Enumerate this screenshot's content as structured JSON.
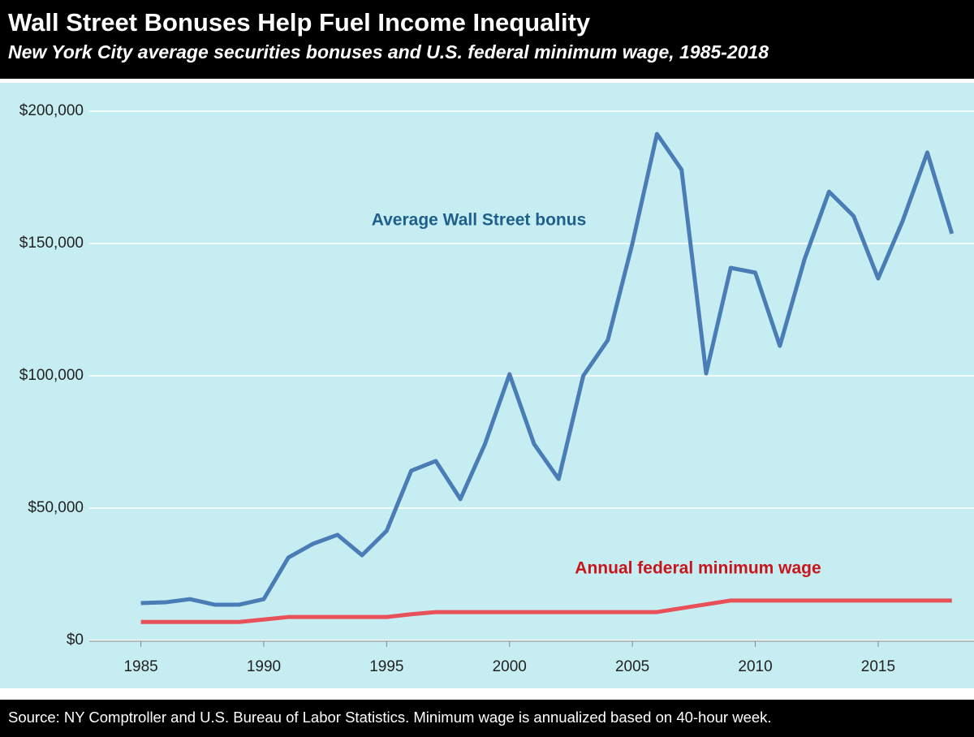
{
  "chart_data": {
    "type": "line",
    "title": "Wall Street Bonuses Help Fuel Income Inequality",
    "subtitle": "New York City average securities bonuses and U.S. federal minimum wage, 1985-2018",
    "source": "Source: NY Comptroller and U.S. Bureau of Labor Statistics. Minimum wage is annualized based on 40-hour week.",
    "x": [
      1985,
      1986,
      1987,
      1988,
      1989,
      1990,
      1991,
      1992,
      1993,
      1994,
      1995,
      1996,
      1997,
      1998,
      1999,
      2000,
      2001,
      2002,
      2003,
      2004,
      2005,
      2006,
      2007,
      2008,
      2009,
      2010,
      2011,
      2012,
      2013,
      2014,
      2015,
      2016,
      2017,
      2018
    ],
    "series": [
      {
        "name": "Average Wall Street bonus",
        "color": "#4a7db5",
        "values": [
          14100,
          14400,
          15600,
          13500,
          13500,
          15600,
          31300,
          36500,
          39900,
          32200,
          41400,
          64100,
          67800,
          53400,
          74200,
          100600,
          74200,
          61000,
          100000,
          113500,
          150000,
          191400,
          177900,
          100900,
          140800,
          139000,
          111300,
          143900,
          169600,
          160400,
          136800,
          158600,
          184400,
          153700
        ]
      },
      {
        "name": "Annual federal minimum wage",
        "color": "#e8505a",
        "values": [
          6968,
          6968,
          6968,
          6968,
          6968,
          7904,
          8840,
          8840,
          8840,
          8840,
          8840,
          9880,
          10712,
          10712,
          10712,
          10712,
          10712,
          10712,
          10712,
          10712,
          10712,
          10712,
          12168,
          13624,
          15080,
          15080,
          15080,
          15080,
          15080,
          15080,
          15080,
          15080,
          15080,
          15080
        ]
      }
    ],
    "xlim": [
      1982.9,
      2018.9
    ],
    "xticks": [
      1985,
      1990,
      1995,
      2000,
      2005,
      2010,
      2015
    ],
    "ylim": [
      0,
      200000
    ],
    "yticks": [
      {
        "value": 0,
        "label": "$0"
      },
      {
        "value": 50000,
        "label": "$50,000"
      },
      {
        "value": 100000,
        "label": "$100,000"
      },
      {
        "value": 150000,
        "label": "$150,000"
      },
      {
        "value": 200000,
        "label": "$200,000"
      }
    ],
    "grid": true
  }
}
